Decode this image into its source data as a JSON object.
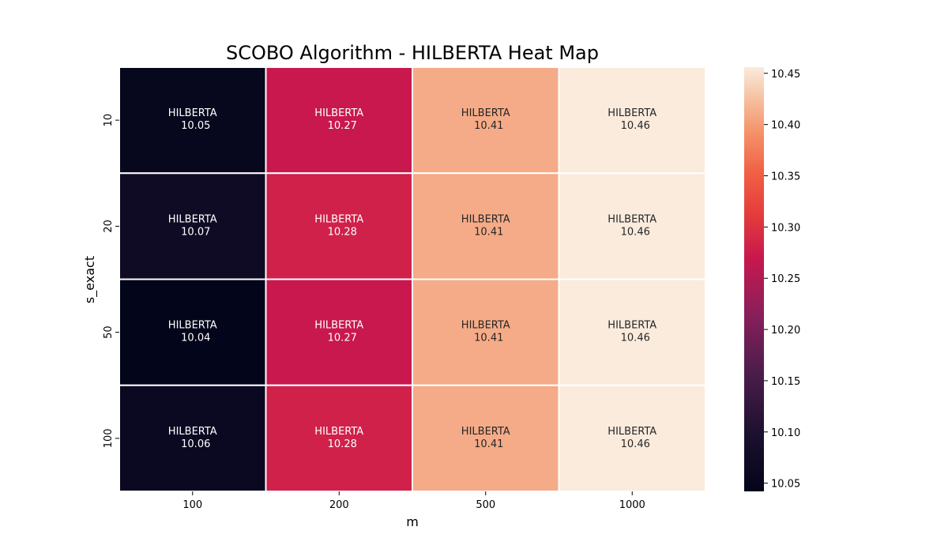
{
  "chart_data": {
    "type": "heatmap",
    "title": "SCOBO Algorithm - HILBERTA Heat Map",
    "xlabel": "m",
    "ylabel": "s_exact",
    "x_categories": [
      "100",
      "200",
      "500",
      "1000"
    ],
    "y_categories": [
      "10",
      "20",
      "50",
      "100"
    ],
    "cell_label_prefix": "HILBERTA",
    "values": [
      [
        10.05,
        10.27,
        10.41,
        10.46
      ],
      [
        10.07,
        10.28,
        10.41,
        10.46
      ],
      [
        10.04,
        10.27,
        10.41,
        10.46
      ],
      [
        10.06,
        10.28,
        10.41,
        10.46
      ]
    ],
    "colorbar": {
      "range": [
        10.042,
        10.456
      ],
      "ticks": [
        "10.05",
        "10.10",
        "10.15",
        "10.20",
        "10.25",
        "10.30",
        "10.35",
        "10.40",
        "10.45"
      ],
      "colormap": "rocket"
    }
  }
}
